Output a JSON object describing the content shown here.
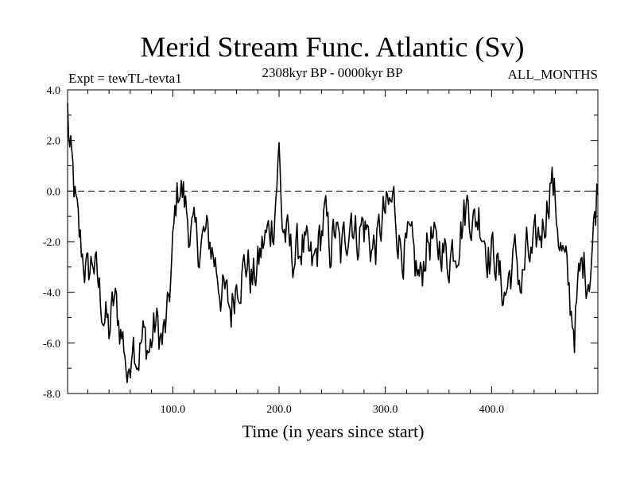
{
  "chart_data": {
    "type": "line",
    "title": "Merid Stream Func. Atlantic (Sv)",
    "subtitle_left": "Expt = tewTL-tevta1",
    "subtitle_center": "2308kyr BP - 0000kyr BP",
    "subtitle_right": "ALL_MONTHS",
    "xlabel": "Time (in years since start)",
    "ylabel": "",
    "xlim": [
      1,
      500
    ],
    "ylim": [
      -8.0,
      4.0
    ],
    "x_ticks": [
      100,
      200,
      300,
      400
    ],
    "x_tick_labels": [
      "100.0",
      "200.0",
      "300.0",
      "400.0"
    ],
    "y_ticks": [
      4,
      2,
      0,
      -2,
      -4,
      -6,
      -8
    ],
    "y_tick_labels": [
      "4.0",
      "2.0",
      "0.0",
      "-2.0",
      "-4.0",
      "-6.0",
      "-8.0"
    ],
    "reference_line": {
      "y": 0.0,
      "style": "dashed"
    },
    "series": [
      {
        "name": "Merid Stream Func. Atlantic",
        "color": "#000000",
        "anchors": [
          [
            1,
            3.2
          ],
          [
            3,
            1.6
          ],
          [
            6,
            0.5
          ],
          [
            9,
            -0.8
          ],
          [
            12,
            -1.9
          ],
          [
            16,
            -2.7
          ],
          [
            20,
            -3.4
          ],
          [
            25,
            -2.6
          ],
          [
            30,
            -3.8
          ],
          [
            35,
            -4.8
          ],
          [
            40,
            -5.6
          ],
          [
            45,
            -4.3
          ],
          [
            50,
            -5.3
          ],
          [
            55,
            -6.2
          ],
          [
            58,
            -7.8
          ],
          [
            62,
            -5.4
          ],
          [
            67,
            -6.5
          ],
          [
            72,
            -5.8
          ],
          [
            78,
            -6.3
          ],
          [
            84,
            -5.2
          ],
          [
            90,
            -6.0
          ],
          [
            95,
            -5.1
          ],
          [
            98,
            -3.5
          ],
          [
            100,
            -2.4
          ],
          [
            103,
            -0.5
          ],
          [
            106,
            0.3
          ],
          [
            110,
            -0.2
          ],
          [
            115,
            -1.3
          ],
          [
            120,
            -1.9
          ],
          [
            125,
            -2.2
          ],
          [
            130,
            -1.8
          ],
          [
            135,
            -2.0
          ],
          [
            140,
            -2.8
          ],
          [
            145,
            -3.8
          ],
          [
            150,
            -4.3
          ],
          [
            155,
            -4.7
          ],
          [
            160,
            -3.4
          ],
          [
            165,
            -3.2
          ],
          [
            170,
            -2.8
          ],
          [
            175,
            -3.6
          ],
          [
            180,
            -3.0
          ],
          [
            185,
            -2.1
          ],
          [
            190,
            -1.7
          ],
          [
            195,
            -1.1
          ],
          [
            200,
            1.6
          ],
          [
            203,
            -1.3
          ],
          [
            208,
            -2.0
          ],
          [
            212,
            -2.6
          ],
          [
            217,
            -2.4
          ],
          [
            222,
            -2.1
          ],
          [
            227,
            -2.7
          ],
          [
            232,
            -3.1
          ],
          [
            238,
            -2.0
          ],
          [
            243,
            -1.0
          ],
          [
            248,
            -2.3
          ],
          [
            253,
            -1.5
          ],
          [
            258,
            -2.6
          ],
          [
            263,
            -1.7
          ],
          [
            268,
            -0.7
          ],
          [
            273,
            -1.9
          ],
          [
            278,
            -1.3
          ],
          [
            283,
            -1.6
          ],
          [
            288,
            -2.3
          ],
          [
            293,
            -2.0
          ],
          [
            298,
            -1.0
          ],
          [
            303,
            -0.8
          ],
          [
            308,
            -0.4
          ],
          [
            313,
            -1.9
          ],
          [
            318,
            -2.4
          ],
          [
            323,
            -2.2
          ],
          [
            328,
            -3.0
          ],
          [
            333,
            -3.6
          ],
          [
            338,
            -2.2
          ],
          [
            343,
            -1.8
          ],
          [
            348,
            -2.5
          ],
          [
            353,
            -2.0
          ],
          [
            358,
            -2.8
          ],
          [
            363,
            -2.2
          ],
          [
            368,
            -1.9
          ],
          [
            373,
            -1.1
          ],
          [
            378,
            -0.4
          ],
          [
            383,
            -1.3
          ],
          [
            388,
            -0.9
          ],
          [
            393,
            -1.6
          ],
          [
            398,
            -2.6
          ],
          [
            403,
            -2.4
          ],
          [
            408,
            -3.6
          ],
          [
            413,
            -4.1
          ],
          [
            418,
            -3.1
          ],
          [
            423,
            -2.6
          ],
          [
            428,
            -3.8
          ],
          [
            433,
            -2.5
          ],
          [
            438,
            -2.8
          ],
          [
            443,
            -2.0
          ],
          [
            448,
            -1.4
          ],
          [
            453,
            -0.3
          ],
          [
            456,
            0.7
          ],
          [
            460,
            -0.5
          ],
          [
            465,
            -2.2
          ],
          [
            470,
            -3.2
          ],
          [
            475,
            -4.7
          ],
          [
            478,
            -5.4
          ],
          [
            482,
            -3.7
          ],
          [
            486,
            -2.8
          ],
          [
            490,
            -3.3
          ],
          [
            493,
            -2.9
          ],
          [
            496,
            -1.6
          ],
          [
            498,
            -0.6
          ],
          [
            500,
            0.6
          ]
        ],
        "notes": "approximate smoothed trace read from the plotted line; noise amplitude ~1.0 Sv",
        "noise_amplitude": 1.0
      }
    ]
  }
}
